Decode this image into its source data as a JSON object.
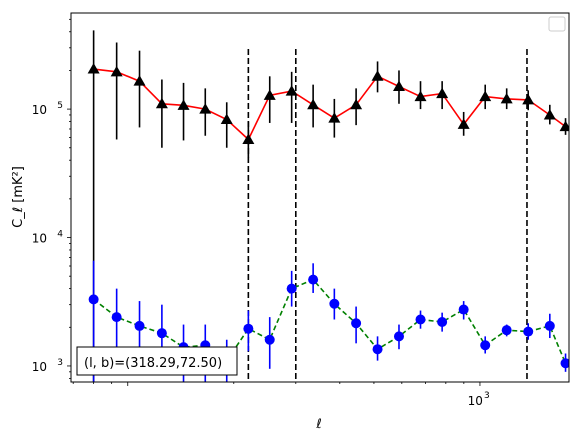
{
  "chart_data": {
    "type": "scatter",
    "xscale": "log",
    "yscale": "log",
    "xlim": [
      69,
      1790
    ],
    "ylim": [
      750,
      560000
    ],
    "xlabel": "ℓ",
    "ylabel": "C_ℓ [mK²]",
    "xticks": [
      {
        "value": 1000,
        "mantissa": "10",
        "exp": "3"
      }
    ],
    "yticks": [
      {
        "value": 1000,
        "mantissa": "10",
        "exp": "3"
      },
      {
        "value": 10000,
        "mantissa": "10",
        "exp": "4"
      },
      {
        "value": 100000,
        "mantissa": "10",
        "exp": "5"
      }
    ],
    "vlines": [
      220,
      300,
      1360
    ],
    "annotation": "(l, b)=(318.29,72.50)",
    "legend": "upper right",
    "series": [
      {
        "marker": "triangle",
        "marker_color": "#000000",
        "line_color": "#ff0000",
        "line_style": "solid",
        "errorbar_color": "#000000",
        "x": [
          80,
          93,
          108,
          125,
          144,
          166,
          191,
          220,
          253,
          292,
          336,
          386,
          445,
          512,
          589,
          678,
          781,
          899,
          1035,
          1191,
          1371,
          1579,
          1750
        ],
        "y": [
          205000,
          195000,
          165000,
          110000,
          107000,
          100000,
          83000,
          58000,
          128000,
          138000,
          108000,
          85000,
          108000,
          180000,
          150000,
          125000,
          132000,
          76000,
          125000,
          120000,
          118000,
          90000,
          73000
        ],
        "y_low": [
          750,
          58000,
          72000,
          50000,
          57000,
          62000,
          50000,
          42000,
          78000,
          78000,
          72000,
          60000,
          75000,
          135000,
          110000,
          100000,
          100000,
          62000,
          100000,
          100000,
          98000,
          76000,
          63000
        ],
        "y_high": [
          410000,
          330000,
          285000,
          170000,
          160000,
          145000,
          113000,
          80000,
          180000,
          195000,
          155000,
          120000,
          145000,
          235000,
          200000,
          165000,
          165000,
          95000,
          155000,
          145000,
          140000,
          108000,
          85000
        ]
      },
      {
        "marker": "circle",
        "marker_color": "#0000ff",
        "line_color": "#008000",
        "line_style": "dashed",
        "errorbar_color": "#0000ff",
        "x": [
          80,
          93,
          108,
          125,
          144,
          166,
          191,
          220,
          253,
          292,
          336,
          386,
          445,
          512,
          589,
          678,
          781,
          899,
          1035,
          1191,
          1371,
          1579,
          1750
        ],
        "y": [
          3300,
          2400,
          2050,
          1800,
          1400,
          1450,
          1100,
          1950,
          1600,
          4000,
          4700,
          3050,
          2150,
          1350,
          1700,
          2300,
          2200,
          2750,
          1450,
          1900,
          1850,
          2050,
          1050
        ],
        "y_low": [
          750,
          1400,
          1300,
          1000,
          750,
          750,
          750,
          1300,
          950,
          2900,
          3700,
          2300,
          1500,
          1100,
          1350,
          1950,
          1850,
          2300,
          1250,
          1700,
          1600,
          1650,
          900
        ],
        "y_high": [
          6600,
          4000,
          3200,
          3000,
          2100,
          2100,
          1600,
          2700,
          2400,
          5500,
          6300,
          4000,
          2900,
          1700,
          2100,
          2700,
          2600,
          3200,
          1700,
          2100,
          2150,
          2550,
          1250
        ]
      }
    ]
  }
}
